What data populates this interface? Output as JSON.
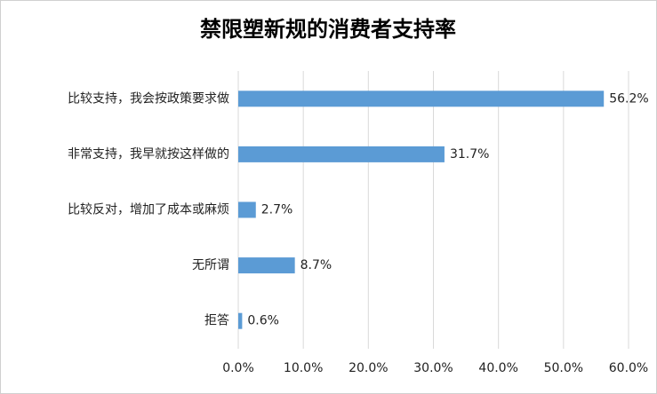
{
  "chart_data": {
    "type": "barh",
    "title": "禁限塑新规的消费者支持率",
    "categories": [
      "比较支持，我会按政策要求做",
      "非常支持，我早就按这样做的",
      "比较反对，增加了成本或麻烦",
      "无所谓",
      "拒答"
    ],
    "values": [
      56.2,
      31.7,
      2.7,
      8.7,
      0.6
    ],
    "value_labels": [
      "56.2%",
      "31.7%",
      "2.7%",
      "8.7%",
      "0.6%"
    ],
    "color": "#5b9bd5",
    "xlim": [
      0,
      60
    ],
    "xticks": [
      {
        "value": 0,
        "label": "0.0%"
      },
      {
        "value": 10,
        "label": "10.0%"
      },
      {
        "value": 20,
        "label": "20.0%"
      },
      {
        "value": 30,
        "label": "30.0%"
      },
      {
        "value": 40,
        "label": "40.0%"
      },
      {
        "value": 50,
        "label": "50.0%"
      },
      {
        "value": 60,
        "label": "60.0%"
      }
    ],
    "grid": true
  }
}
